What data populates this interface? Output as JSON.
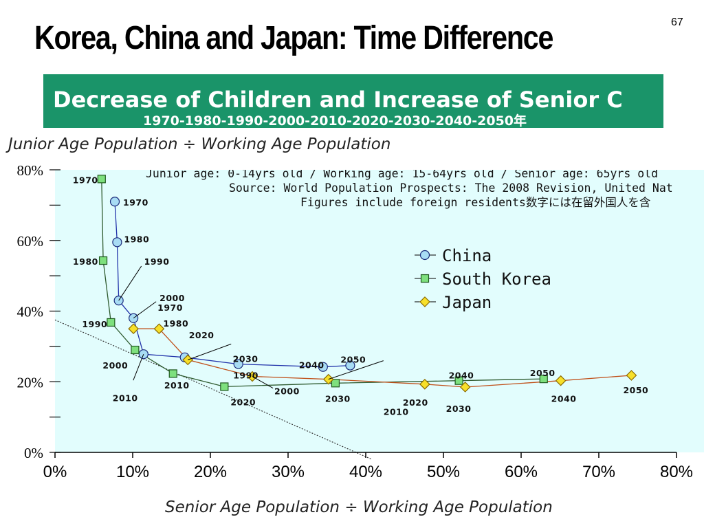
{
  "page": {
    "number": "67",
    "title": "Korea, China and Japan: Time Difference",
    "banner_main": "Decrease of Children and Increase of Senior C",
    "banner_years": "1970-1980-1990-2000-2010-2020-2030-2040-2050年"
  },
  "colors": {
    "banner": "#1a9469",
    "plot_background": "#e2fdfd",
    "china": "#a8dcf4",
    "china_line": "#2233aa",
    "korea": "#7ee07e",
    "korea_line": "#2e5a2e",
    "japan": "#f7e02a",
    "japan_line": "#c0501a"
  },
  "chart_data": {
    "type": "line",
    "xlabel": "Senior Age Population ÷ Working Age Population",
    "ylabel": "Junior Age Population ÷ Working Age Population",
    "xlim": [
      0,
      80
    ],
    "ylim": [
      0,
      80
    ],
    "x_ticks": [
      "0%",
      "10%",
      "20%",
      "30%",
      "40%",
      "50%",
      "60%",
      "70%",
      "80%"
    ],
    "y_ticks": [
      {
        "value": 0,
        "label": "0%"
      },
      {
        "value": 20,
        "label": "20%"
      },
      {
        "value": 40,
        "label": "40%"
      },
      {
        "value": 60,
        "label": "60%"
      },
      {
        "value": 80,
        "label": "80%"
      }
    ],
    "y_minor_ticks": [
      10,
      30,
      50,
      70
    ],
    "legend_position": "right",
    "notes": [
      "Junior age: 0-14yrs old / Working age: 15-64yrs old / Senior age: 65yrs old",
      "Source: World Population Prospects: The 2008 Revision, United Nat",
      "Figures include foreign residents数字には在留外国人を含"
    ],
    "trend_line": {
      "x": [
        0,
        40.8
      ],
      "y": [
        37.5,
        -2
      ]
    },
    "series": [
      {
        "name": "China",
        "marker": "circle",
        "points": [
          {
            "year": "1970",
            "x": 7.7,
            "y": 71.0
          },
          {
            "year": "1980",
            "x": 8.0,
            "y": 59.5
          },
          {
            "year": "1990",
            "x": 8.2,
            "y": 43.0
          },
          {
            "year": "2000",
            "x": 10.1,
            "y": 38.0
          },
          {
            "year": "2010",
            "x": 11.4,
            "y": 27.8
          },
          {
            "year": "2020",
            "x": 16.7,
            "y": 26.9
          },
          {
            "year": "2030",
            "x": 23.6,
            "y": 25.0
          },
          {
            "year": "2040",
            "x": 34.5,
            "y": 24.2
          },
          {
            "year": "2050",
            "x": 38.0,
            "y": 24.6
          }
        ]
      },
      {
        "name": "South Korea",
        "marker": "square",
        "points": [
          {
            "year": "1970",
            "x": 6.0,
            "y": 77.4
          },
          {
            "year": "1980",
            "x": 6.2,
            "y": 54.3
          },
          {
            "year": "1990",
            "x": 7.2,
            "y": 36.8
          },
          {
            "year": "2000",
            "x": 10.3,
            "y": 29.0
          },
          {
            "year": "2010",
            "x": 15.2,
            "y": 22.3
          },
          {
            "year": "2020",
            "x": 21.8,
            "y": 18.6
          },
          {
            "year": "2030",
            "x": 36.1,
            "y": 19.6
          },
          {
            "year": "2040",
            "x": 52.0,
            "y": 20.3
          },
          {
            "year": "2050",
            "x": 62.9,
            "y": 20.8
          }
        ]
      },
      {
        "name": "Japan",
        "marker": "diamond",
        "points": [
          {
            "year": "1970",
            "x": 10.1,
            "y": 35.0
          },
          {
            "year": "1980",
            "x": 13.4,
            "y": 35.0
          },
          {
            "year": "1990",
            "x": 17.1,
            "y": 26.2
          },
          {
            "year": "2000",
            "x": 25.4,
            "y": 21.5
          },
          {
            "year": "2010",
            "x": 35.2,
            "y": 20.7
          },
          {
            "year": "2020",
            "x": 47.6,
            "y": 19.3
          },
          {
            "year": "2030",
            "x": 52.8,
            "y": 18.5
          },
          {
            "year": "2040",
            "x": 65.1,
            "y": 20.3
          },
          {
            "year": "2050",
            "x": 74.2,
            "y": 21.8
          }
        ]
      }
    ]
  }
}
